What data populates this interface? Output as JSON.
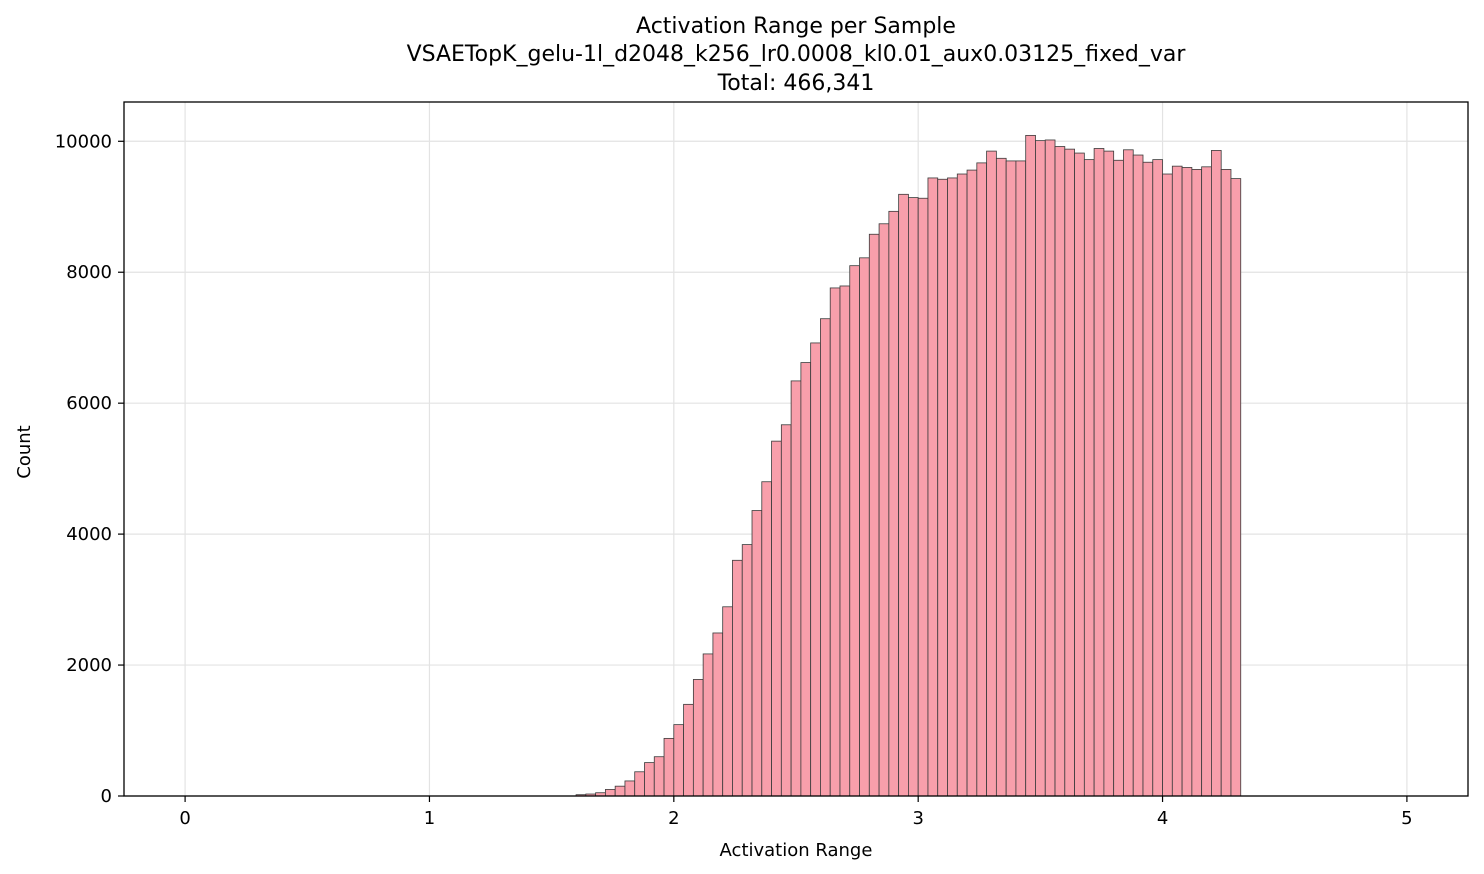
{
  "chart_data": {
    "type": "bar",
    "title": "Activation Range per Sample",
    "subtitle": "VSAETopK_gelu-1l_d2048_k256_lr0.0008_kl0.01_aux0.03125_fixed_var",
    "total_label": "Total: 466,341",
    "xlabel": "Activation Range",
    "ylabel": "Count",
    "xlim": [
      -0.25,
      5.25
    ],
    "ylim": [
      0,
      10600
    ],
    "xticks": [
      0,
      1,
      2,
      3,
      4,
      5
    ],
    "xtick_labels": [
      "0",
      "1",
      "2",
      "3",
      "4",
      "5"
    ],
    "yticks": [
      0,
      2000,
      4000,
      6000,
      8000,
      10000
    ],
    "ytick_labels": [
      "0",
      "2000",
      "4000",
      "6000",
      "8000",
      "10000"
    ],
    "grid": true,
    "bar_color": "#f89fab",
    "edge_color": "#3a3a3a",
    "bin_start": 0,
    "bin_width": 0.04,
    "values": [
      0,
      0,
      0,
      0,
      0,
      0,
      0,
      0,
      0,
      0,
      0,
      0,
      0,
      0,
      0,
      0,
      0,
      0,
      0,
      0,
      0,
      0,
      0,
      0,
      0,
      0,
      0,
      0,
      0,
      0,
      0,
      0,
      0,
      0,
      0,
      0,
      0,
      0,
      0,
      0,
      20,
      30,
      50,
      100,
      150,
      230,
      370,
      510,
      600,
      880,
      1090,
      1400,
      1780,
      2170,
      2490,
      2890,
      3600,
      3840,
      4360,
      4800,
      5420,
      5670,
      6340,
      6620,
      6920,
      7290,
      7760,
      7790,
      8100,
      8220,
      8580,
      8740,
      8930,
      9190,
      9140,
      9130,
      9440,
      9420,
      9440,
      9500,
      9560,
      9670,
      9850,
      9740,
      9700,
      9700,
      10090,
      10010,
      10020,
      9920,
      9880,
      9820,
      9720,
      9890,
      9850,
      9710,
      9870,
      9790,
      9680,
      9720,
      9500,
      9620,
      9600,
      9570,
      9610,
      9860,
      9570,
      9430
    ]
  }
}
